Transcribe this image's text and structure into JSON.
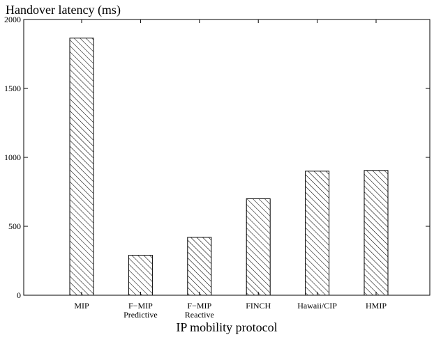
{
  "chart_data": {
    "type": "bar",
    "ylabel": "Handover latency (ms)",
    "xlabel": "IP mobility protocol",
    "ylim": [
      0,
      2000
    ],
    "yticks": [
      0,
      500,
      1000,
      1500,
      2000
    ],
    "grid": false,
    "fill_pattern": "diagonal-hatch",
    "categories": [
      {
        "line1": "MIP",
        "line2": ""
      },
      {
        "line1": "F−MIP",
        "line2": "Predictive"
      },
      {
        "line1": "F−MIP",
        "line2": "Reactive"
      },
      {
        "line1": "FINCH",
        "line2": ""
      },
      {
        "line1": "Hawaii/CIP",
        "line2": ""
      },
      {
        "line1": "HMIP",
        "line2": ""
      }
    ],
    "values": [
      1865,
      290,
      420,
      700,
      900,
      905
    ]
  }
}
